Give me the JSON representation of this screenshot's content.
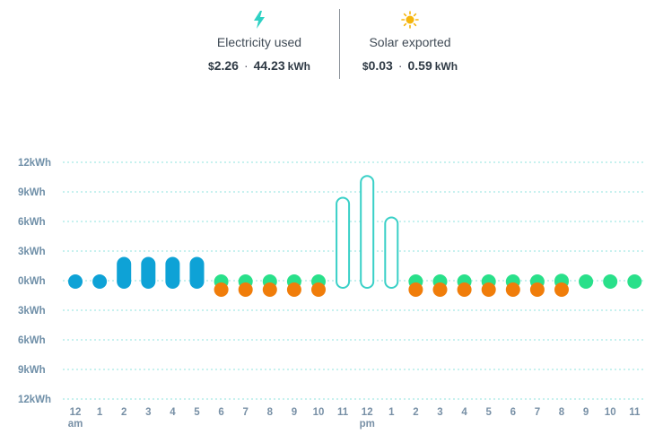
{
  "summary": {
    "electricity": {
      "icon": "lightning-icon",
      "label": "Electricity used",
      "currency": "$",
      "cost": "2.26",
      "separator": "·",
      "energy": "44.23",
      "unit": "kWh"
    },
    "solar": {
      "icon": "sun-icon",
      "label": "Solar exported",
      "currency": "$",
      "cost": "0.03",
      "separator": "·",
      "energy": "0.59",
      "unit": "kWh"
    }
  },
  "colors": {
    "blue": "#0ea2d6",
    "teal_outline": "#39d0c7",
    "green": "#29e08a",
    "orange": "#f07d0a",
    "grid": "#8fe3df",
    "lightning": "#2fd1c4",
    "sun": "#f5b50c"
  },
  "chart_data": {
    "type": "bar",
    "ylabel": "",
    "xlabel": "",
    "y_tick_labels": [
      "12kWh",
      "9kWh",
      "6kWh",
      "3kWh",
      "0kWh",
      "3kWh",
      "6kWh",
      "9kWh",
      "12kWh"
    ],
    "ylim": [
      -12,
      12
    ],
    "grid": true,
    "categories": [
      "12",
      "1",
      "2",
      "3",
      "4",
      "5",
      "6",
      "7",
      "8",
      "9",
      "10",
      "11",
      "12",
      "1",
      "2",
      "3",
      "4",
      "5",
      "6",
      "7",
      "8",
      "9",
      "10",
      "11"
    ],
    "period_labels": [
      {
        "index": 0,
        "text": "am"
      },
      {
        "index": 12,
        "text": "pm"
      }
    ],
    "series": [
      {
        "style": "blue-filled",
        "values": [
          0.6,
          0.6,
          2.5,
          2.5,
          2.5,
          2.5,
          0,
          0,
          0,
          0,
          0,
          0,
          0,
          0,
          0,
          0,
          0,
          0,
          0,
          0,
          0,
          0,
          0,
          0
        ]
      },
      {
        "style": "teal-outline",
        "values": [
          0,
          0,
          0,
          0,
          0,
          0,
          0,
          0,
          0,
          0,
          0,
          8.5,
          10.7,
          6.5,
          0,
          0,
          0,
          0,
          0,
          0,
          0,
          0,
          0,
          0
        ]
      },
      {
        "style": "green-filled",
        "values": [
          0,
          0,
          0,
          0,
          0,
          0,
          0.6,
          0.6,
          0.6,
          0.6,
          0.6,
          0,
          0,
          0,
          0.6,
          0.6,
          0.6,
          0.6,
          0.6,
          0.6,
          0.8,
          0.6,
          0.6,
          0.6
        ]
      },
      {
        "style": "orange-filled",
        "values": [
          0,
          0,
          0,
          0,
          0,
          0,
          -0.6,
          -0.6,
          -0.6,
          -0.6,
          -0.6,
          0,
          0,
          0,
          -0.6,
          -0.6,
          -0.6,
          -0.6,
          -0.6,
          -0.6,
          -0.6,
          0,
          0,
          0
        ]
      }
    ]
  }
}
